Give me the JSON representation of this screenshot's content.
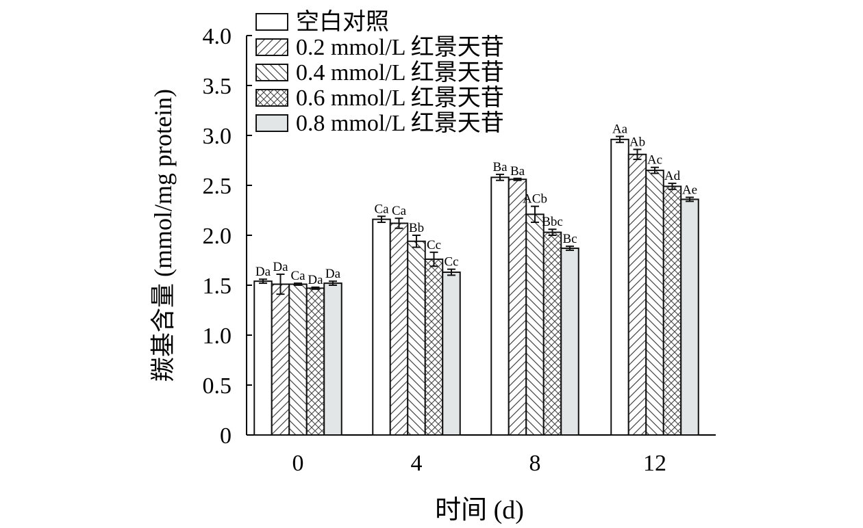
{
  "chart_data": {
    "type": "bar",
    "xlabel": "时间 (d)",
    "ylabel": "羰基含量 (mmol/mg protein)",
    "ylim": [
      0,
      4.0
    ],
    "yticks": [
      "0",
      "0.5",
      "1.0",
      "1.5",
      "2.0",
      "2.5",
      "3.0",
      "3.5",
      "4.0"
    ],
    "categories": [
      "0",
      "4",
      "8",
      "12"
    ],
    "legend_position": "top",
    "grid": false,
    "series": [
      {
        "name": "空白对照",
        "fill": "white",
        "values": [
          1.54,
          2.16,
          2.58,
          2.96
        ],
        "errors": [
          0.02,
          0.03,
          0.03,
          0.03
        ],
        "labels": [
          "Da",
          "Ca",
          "Ba",
          "Aa"
        ]
      },
      {
        "name": "0.2 mmol/L 红景天苷",
        "fill": "hatch-forward",
        "values": [
          1.51,
          2.12,
          2.56,
          2.81
        ],
        "errors": [
          0.1,
          0.05,
          0.01,
          0.05
        ],
        "labels": [
          "Da",
          "Ca",
          "Ba",
          "Ab"
        ]
      },
      {
        "name": "0.4 mmol/L 红景天苷",
        "fill": "hatch-backward",
        "values": [
          1.51,
          1.94,
          2.21,
          2.65
        ],
        "errors": [
          0.01,
          0.06,
          0.08,
          0.03
        ],
        "labels": [
          "Ca",
          "Bb",
          "ACb",
          "Ac"
        ]
      },
      {
        "name": "0.6 mmol/L 红景天苷",
        "fill": "crosshatch",
        "values": [
          1.47,
          1.76,
          2.03,
          2.49
        ],
        "errors": [
          0.01,
          0.07,
          0.03,
          0.03
        ],
        "labels": [
          "Da",
          "Cc",
          "Bbc",
          "Ad"
        ]
      },
      {
        "name": "0.8 mmol/L 红景天苷",
        "fill": "#e2e6e6",
        "values": [
          1.52,
          1.63,
          1.87,
          2.36
        ],
        "errors": [
          0.02,
          0.03,
          0.02,
          0.02
        ],
        "labels": [
          "Da",
          "Cc",
          "Bc",
          "Ae"
        ]
      }
    ]
  }
}
